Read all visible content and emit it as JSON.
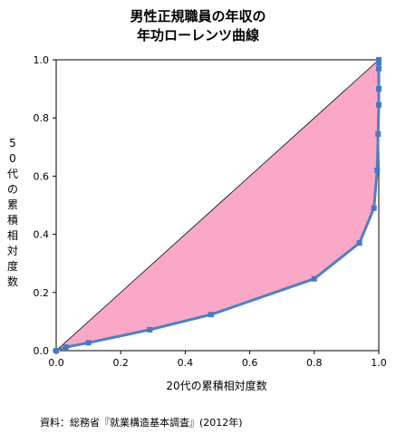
{
  "chart_data": {
    "type": "line",
    "title_line1": "男性正規職員の年収の",
    "title_line2": "年功ローレンツ曲線",
    "xlabel": "20代の累積相対度数",
    "ylabel": "50代の累積相対度数",
    "xlim": [
      0.0,
      1.0
    ],
    "ylim": [
      0.0,
      1.0
    ],
    "x_ticks": [
      "0.0",
      "0.2",
      "0.4",
      "0.6",
      "0.8",
      "1.0"
    ],
    "y_ticks": [
      "0.0",
      "0.2",
      "0.4",
      "0.6",
      "0.8",
      "1.0"
    ],
    "grid": false,
    "colors": {
      "line": "#4f81bd",
      "marker": "#4a78c0",
      "fill": "#f9a8c8",
      "diagonal": "#000000"
    },
    "series": [
      {
        "x": [
          0.0,
          0.03,
          0.1,
          0.29,
          0.48,
          0.8,
          0.94,
          0.985,
          0.995,
          0.998,
          1.0,
          1.0,
          1.0,
          1.0,
          1.0
        ],
        "y": [
          0.0,
          0.012,
          0.027,
          0.072,
          0.124,
          0.247,
          0.37,
          0.49,
          0.62,
          0.745,
          0.845,
          0.9,
          0.97,
          0.99,
          1.0
        ]
      }
    ]
  },
  "source": "資料：総務省『就業構造基本調査』(2012年)"
}
